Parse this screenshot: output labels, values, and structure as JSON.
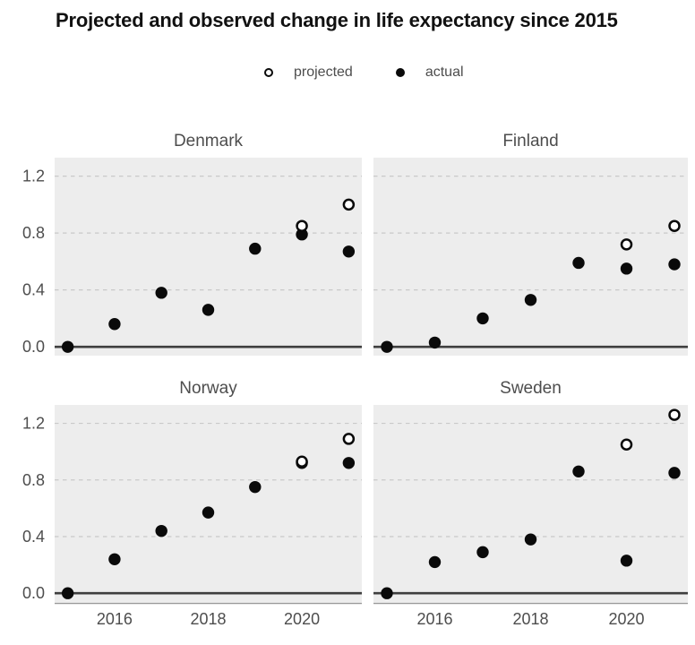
{
  "title": "Projected and observed change in life expectancy since 2015",
  "legend": {
    "items": [
      {
        "label": "projected",
        "marker": "open-circle"
      },
      {
        "label": "actual",
        "marker": "filled-circle"
      }
    ]
  },
  "chart_data": {
    "type": "scatter",
    "title": "Projected and observed change in life expectancy since 2015",
    "xlabel": "",
    "ylabel": "",
    "x_ticks": [
      2016,
      2018,
      2020
    ],
    "y_ticks": [
      0.0,
      0.4,
      0.8,
      1.2
    ],
    "y_tick_labels": [
      "0.0",
      "0.4",
      "0.8",
      "1.2"
    ],
    "x_domain": [
      2014.72,
      2021.28
    ],
    "y_domain": [
      -0.062,
      1.33
    ],
    "grid": "horizontal-dashed",
    "zero_line": true,
    "legend_position": "top-center",
    "facets": [
      {
        "name": "Denmark",
        "series": [
          {
            "name": "actual",
            "points": [
              [
                2015,
                0.0
              ],
              [
                2016,
                0.16
              ],
              [
                2017,
                0.38
              ],
              [
                2018,
                0.26
              ],
              [
                2019,
                0.69
              ],
              [
                2020,
                0.79
              ],
              [
                2021,
                0.67
              ]
            ]
          },
          {
            "name": "projected",
            "points": [
              [
                2020,
                0.85
              ],
              [
                2021,
                1.0
              ]
            ]
          }
        ]
      },
      {
        "name": "Finland",
        "series": [
          {
            "name": "actual",
            "points": [
              [
                2015,
                0.0
              ],
              [
                2016,
                0.03
              ],
              [
                2017,
                0.2
              ],
              [
                2018,
                0.33
              ],
              [
                2019,
                0.59
              ],
              [
                2020,
                0.55
              ],
              [
                2021,
                0.58
              ]
            ]
          },
          {
            "name": "projected",
            "points": [
              [
                2020,
                0.72
              ],
              [
                2021,
                0.85
              ]
            ]
          }
        ]
      },
      {
        "name": "Norway",
        "series": [
          {
            "name": "actual",
            "points": [
              [
                2015,
                0.0
              ],
              [
                2016,
                0.24
              ],
              [
                2017,
                0.44
              ],
              [
                2018,
                0.57
              ],
              [
                2019,
                0.75
              ],
              [
                2020,
                0.92
              ],
              [
                2021,
                0.92
              ]
            ]
          },
          {
            "name": "projected",
            "points": [
              [
                2020,
                0.93
              ],
              [
                2021,
                1.09
              ]
            ]
          }
        ]
      },
      {
        "name": "Sweden",
        "series": [
          {
            "name": "actual",
            "points": [
              [
                2015,
                0.0
              ],
              [
                2016,
                0.22
              ],
              [
                2017,
                0.29
              ],
              [
                2018,
                0.38
              ],
              [
                2019,
                0.86
              ],
              [
                2020,
                0.23
              ],
              [
                2021,
                0.85
              ]
            ]
          },
          {
            "name": "projected",
            "points": [
              [
                2020,
                1.05
              ],
              [
                2021,
                1.26
              ]
            ]
          }
        ]
      }
    ],
    "colors": {
      "panel_background": "#EDEDED",
      "gridline": "#C9C9C9",
      "zero_line": "#3F3F3F",
      "axis_line": "#999999",
      "point": "#0A0A0A",
      "tick_label": "#4D4D4D",
      "facet_title": "#4D4D4D",
      "title": "#111111"
    }
  }
}
